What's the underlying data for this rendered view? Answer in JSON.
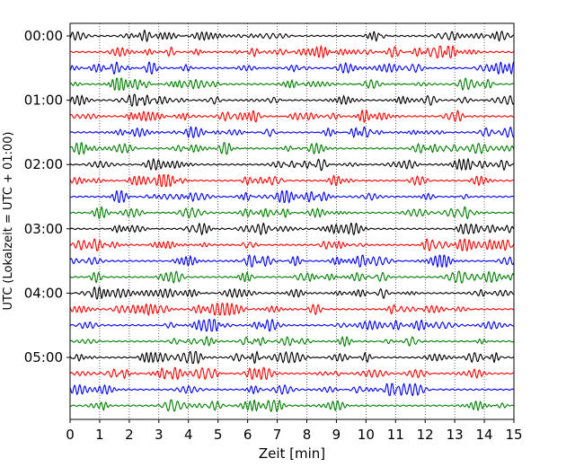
{
  "chart_data": {
    "type": "line",
    "title": "",
    "xlabel": "Zeit  [min]",
    "ylabel": "UTC (Lokalzeit = UTC + 01:00)",
    "xlim": [
      0,
      15
    ],
    "x_ticks": [
      0,
      1,
      2,
      3,
      4,
      5,
      6,
      7,
      8,
      9,
      10,
      11,
      12,
      13,
      14,
      15
    ],
    "y_tick_labels": [
      "00:00",
      "01:00",
      "02:00",
      "03:00",
      "04:00",
      "05:00"
    ],
    "y_tick_trace_index": [
      0,
      4,
      8,
      12,
      16,
      20
    ],
    "trace_count": 24,
    "trace_interval_min": 15,
    "trace_colors": [
      "#000000",
      "#ff0000",
      "#0000ff",
      "#007f00"
    ],
    "grid": "vertical dotted",
    "legend": "none",
    "amplitude_relative": 0.28
  }
}
